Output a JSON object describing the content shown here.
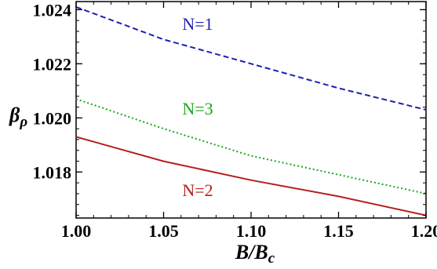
{
  "chart_data": {
    "type": "line",
    "xlabel": "B/B_c",
    "ylabel": "β_ρ",
    "xlim": [
      1.0,
      1.2
    ],
    "ylim": [
      1.0163,
      1.0243
    ],
    "xticks": [
      "1.00",
      "1.05",
      "1.10",
      "1.15",
      "1.20"
    ],
    "yticks": [
      "1.018",
      "1.020",
      "1.022",
      "1.024"
    ],
    "grid": false,
    "legend": "none",
    "series": [
      {
        "name": "N=1",
        "color": "#1f1fb5",
        "style": "dashed",
        "x": [
          1.0,
          1.05,
          1.1,
          1.15,
          1.2
        ],
        "y": [
          1.0241,
          1.0229,
          1.022,
          1.0211,
          1.0203
        ]
      },
      {
        "name": "N=3",
        "color": "#1aa81a",
        "style": "dotted",
        "x": [
          1.0,
          1.05,
          1.1,
          1.15,
          1.2
        ],
        "y": [
          1.0207,
          1.0196,
          1.0186,
          1.0179,
          1.0172
        ]
      },
      {
        "name": "N=2",
        "color": "#b51f1f",
        "style": "solid",
        "x": [
          1.0,
          1.05,
          1.1,
          1.15,
          1.2
        ],
        "y": [
          1.0193,
          1.0184,
          1.0177,
          1.0171,
          1.0164
        ]
      }
    ]
  }
}
